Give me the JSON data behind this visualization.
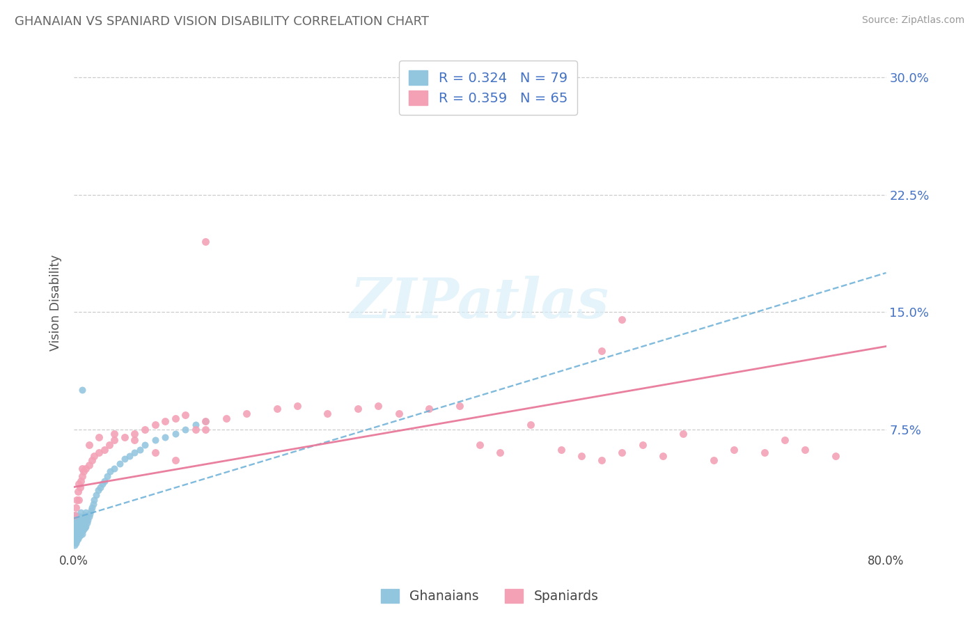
{
  "title": "GHANAIAN VS SPANIARD VISION DISABILITY CORRELATION CHART",
  "source": "Source: ZipAtlas.com",
  "ylabel": "Vision Disability",
  "xmin": 0.0,
  "xmax": 0.8,
  "ymin": -0.003,
  "ymax": 0.315,
  "ghanaian_R": 0.324,
  "ghanaian_N": 79,
  "spaniard_R": 0.359,
  "spaniard_N": 65,
  "ghanaian_color": "#92c5de",
  "spaniard_color": "#f4a0b5",
  "ghanaian_line_color": "#6aaed6",
  "spaniard_line_color": "#e8799a",
  "tick_color": "#4472c4",
  "title_color": "#666666",
  "source_color": "#999999",
  "grid_color": "#cccccc",
  "watermark_color": "#d8eef8",
  "ytick_vals": [
    0.075,
    0.15,
    0.225,
    0.3
  ],
  "ytick_labels": [
    "7.5%",
    "15.0%",
    "22.5%",
    "30.0%"
  ],
  "gh_trend_x0": 0.0,
  "gh_trend_y0": 0.018,
  "gh_trend_x1": 0.8,
  "gh_trend_y1": 0.175,
  "sp_trend_x0": 0.0,
  "sp_trend_y0": 0.038,
  "sp_trend_x1": 0.8,
  "sp_trend_y1": 0.128,
  "ghanaian_x": [
    0.001,
    0.001,
    0.001,
    0.001,
    0.001,
    0.002,
    0.002,
    0.002,
    0.002,
    0.002,
    0.002,
    0.002,
    0.003,
    0.003,
    0.003,
    0.003,
    0.003,
    0.003,
    0.004,
    0.004,
    0.004,
    0.004,
    0.005,
    0.005,
    0.005,
    0.006,
    0.006,
    0.007,
    0.007,
    0.008,
    0.008,
    0.009,
    0.009,
    0.01,
    0.01,
    0.011,
    0.011,
    0.012,
    0.012,
    0.013,
    0.014,
    0.015,
    0.016,
    0.017,
    0.018,
    0.019,
    0.02,
    0.022,
    0.024,
    0.026,
    0.028,
    0.03,
    0.033,
    0.036,
    0.04,
    0.045,
    0.05,
    0.055,
    0.06,
    0.065,
    0.07,
    0.08,
    0.09,
    0.1,
    0.11,
    0.12,
    0.13,
    0.008,
    0.003,
    0.002,
    0.001,
    0.001,
    0.001,
    0.002,
    0.003,
    0.004,
    0.005,
    0.006,
    0.007
  ],
  "ghanaian_y": [
    0.005,
    0.008,
    0.01,
    0.012,
    0.015,
    0.003,
    0.006,
    0.009,
    0.011,
    0.014,
    0.017,
    0.02,
    0.004,
    0.007,
    0.01,
    0.013,
    0.016,
    0.019,
    0.005,
    0.008,
    0.012,
    0.018,
    0.006,
    0.01,
    0.015,
    0.007,
    0.013,
    0.009,
    0.016,
    0.008,
    0.014,
    0.01,
    0.017,
    0.011,
    0.018,
    0.012,
    0.02,
    0.013,
    0.022,
    0.015,
    0.017,
    0.019,
    0.021,
    0.023,
    0.025,
    0.027,
    0.03,
    0.033,
    0.036,
    0.038,
    0.04,
    0.042,
    0.045,
    0.048,
    0.05,
    0.053,
    0.056,
    0.058,
    0.06,
    0.062,
    0.065,
    0.068,
    0.07,
    0.072,
    0.075,
    0.078,
    0.08,
    0.1,
    0.004,
    0.002,
    0.001,
    0.003,
    0.006,
    0.008,
    0.011,
    0.014,
    0.016,
    0.019,
    0.022
  ],
  "spaniard_x": [
    0.001,
    0.002,
    0.003,
    0.004,
    0.005,
    0.006,
    0.007,
    0.008,
    0.01,
    0.012,
    0.015,
    0.018,
    0.02,
    0.025,
    0.03,
    0.035,
    0.04,
    0.05,
    0.06,
    0.07,
    0.08,
    0.09,
    0.1,
    0.11,
    0.12,
    0.13,
    0.15,
    0.17,
    0.2,
    0.22,
    0.25,
    0.28,
    0.3,
    0.32,
    0.35,
    0.38,
    0.4,
    0.42,
    0.45,
    0.48,
    0.5,
    0.52,
    0.54,
    0.56,
    0.58,
    0.6,
    0.63,
    0.65,
    0.68,
    0.7,
    0.72,
    0.75,
    0.42,
    0.13,
    0.54,
    0.52,
    0.005,
    0.008,
    0.015,
    0.025,
    0.04,
    0.06,
    0.08,
    0.1,
    0.13
  ],
  "spaniard_y": [
    0.02,
    0.025,
    0.03,
    0.035,
    0.04,
    0.038,
    0.042,
    0.045,
    0.048,
    0.05,
    0.052,
    0.055,
    0.058,
    0.06,
    0.062,
    0.065,
    0.068,
    0.07,
    0.072,
    0.075,
    0.078,
    0.08,
    0.082,
    0.084,
    0.075,
    0.08,
    0.082,
    0.085,
    0.088,
    0.09,
    0.085,
    0.088,
    0.09,
    0.085,
    0.088,
    0.09,
    0.065,
    0.06,
    0.078,
    0.062,
    0.058,
    0.055,
    0.06,
    0.065,
    0.058,
    0.072,
    0.055,
    0.062,
    0.06,
    0.068,
    0.062,
    0.058,
    0.285,
    0.195,
    0.145,
    0.125,
    0.03,
    0.05,
    0.065,
    0.07,
    0.072,
    0.068,
    0.06,
    0.055,
    0.075
  ]
}
